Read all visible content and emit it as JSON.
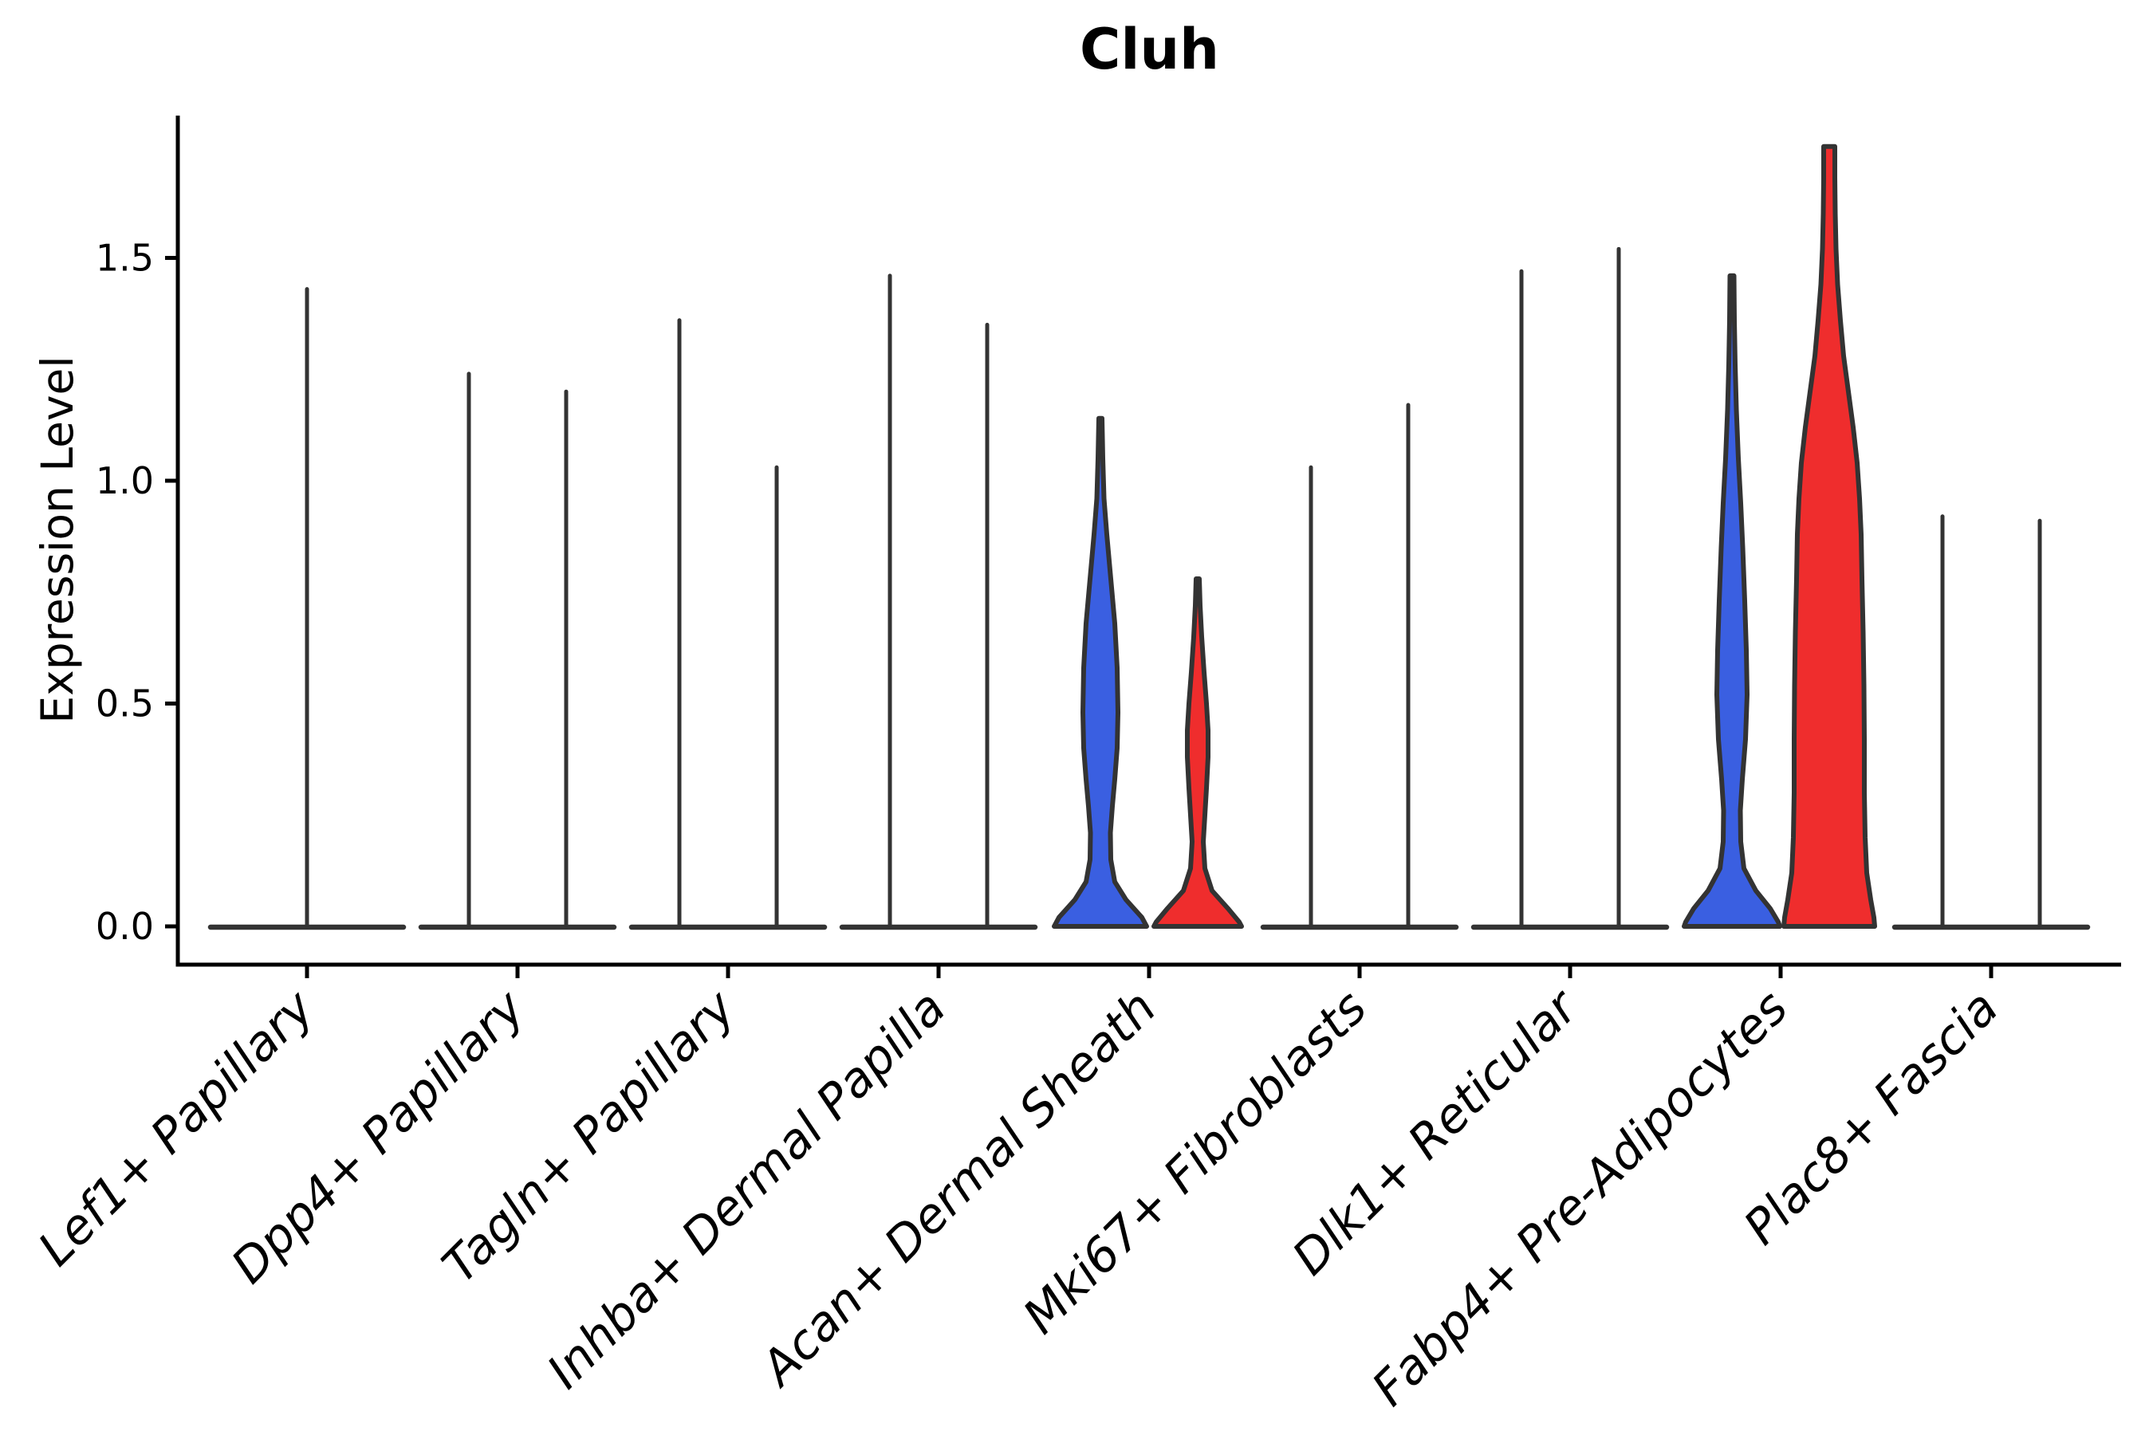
{
  "title": "Cluh",
  "y_axis": {
    "label": "Expression Level"
  },
  "colors": {
    "blue": "#3A5FE1",
    "red": "#EF2D2D",
    "outline": "#333333",
    "axis": "#000000",
    "background": "#ffffff"
  },
  "chart_data": {
    "type": "violin",
    "title": "Cluh",
    "ylabel": "Expression Level",
    "xlabel": "",
    "grid": false,
    "legend": "none",
    "y_ticks": [
      0.0,
      0.5,
      1.0,
      1.5
    ],
    "y_tick_labels": [
      "0.0",
      "0.5",
      "1.0",
      "1.5"
    ],
    "ylim": [
      -0.09,
      1.82
    ],
    "split_note": "each category holds a left (blue condition) and right (red condition) violin; sparse groups collapse to zero-width spikes with a flat base line at 0",
    "categories": [
      {
        "name": "Lef1+ Papillary",
        "base_halfwidth": 121,
        "violins": [
          {
            "side": "center",
            "kind": "spike",
            "max": 1.43
          }
        ]
      },
      {
        "name": "Dpp4+ Papillary",
        "base_halfwidth": 121,
        "violins": [
          {
            "side": "left",
            "kind": "spike",
            "max": 1.24
          },
          {
            "side": "right",
            "kind": "spike",
            "max": 1.2
          }
        ]
      },
      {
        "name": "Tagln+ Papillary",
        "base_halfwidth": 121,
        "violins": [
          {
            "side": "left",
            "kind": "spike",
            "max": 1.36
          },
          {
            "side": "right",
            "kind": "spike",
            "max": 1.03
          }
        ]
      },
      {
        "name": "Inhba+ Dermal Papilla",
        "base_halfwidth": 121,
        "violins": [
          {
            "side": "left",
            "kind": "spike",
            "max": 1.46
          },
          {
            "side": "right",
            "kind": "spike",
            "max": 1.35
          }
        ]
      },
      {
        "name": "Acan+ Dermal Sheath",
        "base_halfwidth": 121,
        "violins": [
          {
            "side": "left",
            "kind": "density",
            "fill": "blue",
            "max": 1.14,
            "profile": [
              [
                1.14,
                2
              ],
              [
                1.05,
                3
              ],
              [
                0.96,
                4.5
              ],
              [
                0.88,
                8
              ],
              [
                0.78,
                13
              ],
              [
                0.68,
                18
              ],
              [
                0.58,
                21
              ],
              [
                0.48,
                22
              ],
              [
                0.4,
                21
              ],
              [
                0.33,
                18
              ],
              [
                0.27,
                15
              ],
              [
                0.21,
                12.5
              ],
              [
                0.15,
                13
              ],
              [
                0.1,
                18
              ],
              [
                0.06,
                32
              ],
              [
                0.02,
                52
              ],
              [
                0,
                58
              ]
            ]
          },
          {
            "side": "right",
            "kind": "density",
            "fill": "red",
            "max": 0.78,
            "profile": [
              [
                0.78,
                2
              ],
              [
                0.72,
                3
              ],
              [
                0.65,
                5
              ],
              [
                0.57,
                8
              ],
              [
                0.5,
                11
              ],
              [
                0.44,
                13
              ],
              [
                0.38,
                13
              ],
              [
                0.31,
                11
              ],
              [
                0.25,
                9
              ],
              [
                0.19,
                7
              ],
              [
                0.13,
                9
              ],
              [
                0.08,
                18
              ],
              [
                0.04,
                38
              ],
              [
                0.01,
                52
              ],
              [
                0,
                55
              ]
            ]
          }
        ]
      },
      {
        "name": "Mki67+ Fibroblasts",
        "base_halfwidth": 121,
        "violins": [
          {
            "side": "left",
            "kind": "spike",
            "max": 1.03
          },
          {
            "side": "right",
            "kind": "spike",
            "max": 1.17
          }
        ]
      },
      {
        "name": "Dlk1+ Reticular",
        "base_halfwidth": 121,
        "violins": [
          {
            "side": "left",
            "kind": "spike",
            "max": 1.47
          },
          {
            "side": "right",
            "kind": "spike",
            "max": 1.52
          }
        ]
      },
      {
        "name": "Fabp4+ Pre-Adipocytes",
        "base_halfwidth": 121,
        "violins": [
          {
            "side": "left",
            "kind": "density",
            "fill": "blue",
            "max": 1.46,
            "profile": [
              [
                1.46,
                2.5
              ],
              [
                1.36,
                3
              ],
              [
                1.26,
                4
              ],
              [
                1.16,
                5.5
              ],
              [
                1.05,
                8
              ],
              [
                0.95,
                11
              ],
              [
                0.85,
                13.5
              ],
              [
                0.73,
                16
              ],
              [
                0.62,
                18
              ],
              [
                0.52,
                19
              ],
              [
                0.42,
                17
              ],
              [
                0.33,
                13
              ],
              [
                0.26,
                10.5
              ],
              [
                0.19,
                11
              ],
              [
                0.13,
                15
              ],
              [
                0.08,
                30
              ],
              [
                0.04,
                48
              ],
              [
                0.01,
                58
              ],
              [
                0,
                60
              ]
            ]
          },
          {
            "side": "right",
            "kind": "density",
            "fill": "red",
            "max": 1.75,
            "profile": [
              [
                1.75,
                7
              ],
              [
                1.68,
                7
              ],
              [
                1.6,
                7.5
              ],
              [
                1.52,
                8.5
              ],
              [
                1.44,
                10.5
              ],
              [
                1.36,
                14
              ],
              [
                1.28,
                18
              ],
              [
                1.2,
                24
              ],
              [
                1.12,
                30
              ],
              [
                1.04,
                35
              ],
              [
                0.96,
                38
              ],
              [
                0.88,
                40
              ],
              [
                0.78,
                41
              ],
              [
                0.66,
                42.5
              ],
              [
                0.54,
                43.5
              ],
              [
                0.42,
                44
              ],
              [
                0.3,
                44
              ],
              [
                0.2,
                45
              ],
              [
                0.12,
                47
              ],
              [
                0.06,
                52
              ],
              [
                0.02,
                56
              ],
              [
                0,
                57
              ]
            ]
          }
        ]
      },
      {
        "name": "Plac8+ Fascia",
        "base_halfwidth": 121,
        "violins": [
          {
            "side": "left",
            "kind": "spike",
            "max": 0.92
          },
          {
            "side": "right",
            "kind": "spike",
            "max": 0.91
          }
        ]
      }
    ]
  }
}
